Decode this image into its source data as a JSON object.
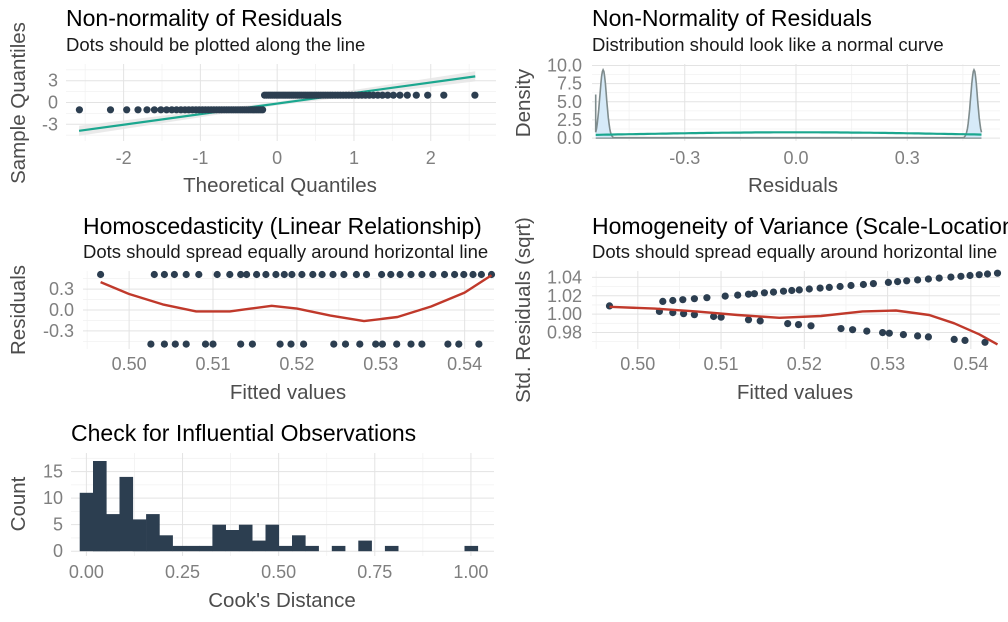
{
  "chart_data": [
    {
      "type": "scatter",
      "title": "Non-normality of Residuals",
      "subtitle": "Dots should be plotted along the line",
      "xlabel": "Theoretical Quantiles",
      "ylabel": "Sample Quantiles",
      "xlim": [
        -2.75,
        2.85
      ],
      "ylim": [
        -5.3,
        5.3
      ],
      "xticks": [
        -2,
        -1,
        0,
        1,
        2
      ],
      "xtick_labels": [
        "-2",
        "-1",
        "0",
        "1",
        "2"
      ],
      "yticks": [
        -3,
        0,
        3
      ],
      "ytick_labels": [
        "-3",
        "0",
        "3"
      ],
      "colors": {
        "points": "#2c3e50",
        "line": "#1ba78f",
        "band": "#e6e6e6"
      },
      "qq_points": {
        "n": 100,
        "neg_count": 43,
        "low_value": -1.0,
        "high_value": 1.0,
        "pos_points_x_min": 0.0
      },
      "reference_line": {
        "x": [
          -2.58,
          2.58
        ],
        "y": [
          -3.9,
          3.6
        ]
      },
      "band_halfwidth": [
        0.7,
        0.25,
        0.7
      ]
    },
    {
      "type": "area",
      "title": "Non-Normality of Residuals",
      "subtitle": "Distribution should look like a normal curve",
      "xlabel": "Residuals",
      "ylabel": "Density",
      "xlim": [
        -0.55,
        0.55
      ],
      "ylim": [
        -0.4,
        10.2
      ],
      "xticks": [
        -0.3,
        0.0,
        0.3
      ],
      "xtick_labels": [
        "-0.3",
        "0.0",
        "0.3"
      ],
      "yticks": [
        0,
        2.5,
        5,
        7.5,
        10
      ],
      "ytick_labels": [
        "0.0",
        "2.5",
        "5.0",
        "7.5",
        "10.0"
      ],
      "colors": {
        "density_fill": "#d6eaf8",
        "density_line": "#7f8c8d",
        "normal_curve": "#1ba78f"
      },
      "density_peaks": [
        {
          "x": -0.52,
          "height": 9.4,
          "sd": 0.009
        },
        {
          "x": 0.48,
          "height": 9.4,
          "sd": 0.009
        }
      ],
      "density_floor": 0.35,
      "normal_curve": {
        "mean": 0.0,
        "sd": 0.5
      }
    },
    {
      "type": "scatter",
      "title": "Homoscedasticity (Linear Relationship)",
      "subtitle": "Dots should spread equally around horizontal line",
      "xlabel": "Fitted values",
      "ylabel": "Residuals",
      "xlim": [
        0.4945,
        0.5435
      ],
      "ylim": [
        -0.56,
        0.56
      ],
      "xticks": [
        0.5,
        0.51,
        0.52,
        0.53,
        0.54
      ],
      "xtick_labels": [
        "0.50",
        "0.51",
        "0.52",
        "0.53",
        "0.54"
      ],
      "yticks": [
        -0.3,
        0.0,
        0.3
      ],
      "ytick_labels": [
        "-0.3",
        "0.0",
        "0.3"
      ],
      "colors": {
        "points": "#2c3e50",
        "smooth": "#c0392b"
      },
      "points_upper_y": 0.51,
      "points_upper_x": [
        0.4966,
        0.503,
        0.5042,
        0.5054,
        0.5068,
        0.5083,
        0.5105,
        0.512,
        0.5133,
        0.514,
        0.5152,
        0.5163,
        0.5175,
        0.5185,
        0.5194,
        0.5206,
        0.5219,
        0.523,
        0.5243,
        0.5256,
        0.5271,
        0.5283,
        0.5301,
        0.5312,
        0.5323,
        0.5336,
        0.5349,
        0.5362,
        0.5376,
        0.5388,
        0.5399,
        0.541,
        0.542,
        0.5432
      ],
      "points_lower_y": -0.49,
      "points_lower_x": [
        0.5026,
        0.5042,
        0.5055,
        0.5068,
        0.5091,
        0.51,
        0.5133,
        0.5147,
        0.518,
        0.5193,
        0.5208,
        0.5244,
        0.5258,
        0.5275,
        0.5294,
        0.5302,
        0.5319,
        0.5336,
        0.5349,
        0.538,
        0.5393,
        0.5417
      ],
      "smooth": {
        "x": [
          0.4966,
          0.5,
          0.504,
          0.508,
          0.512,
          0.5145,
          0.517,
          0.52,
          0.524,
          0.528,
          0.532,
          0.536,
          0.54,
          0.5432
        ],
        "y": [
          0.4,
          0.23,
          0.08,
          -0.02,
          -0.02,
          0.02,
          0.06,
          0.02,
          -0.08,
          -0.16,
          -0.1,
          0.05,
          0.25,
          0.5
        ]
      }
    },
    {
      "type": "scatter",
      "title": "Homogeneity of Variance (Scale-Location)",
      "subtitle": "Dots should spread equally around horizontal line",
      "xlabel": "Fitted values",
      "ylabel": "Std. Residuals (sqrt)",
      "xlim": [
        0.4945,
        0.5435
      ],
      "ylim": [
        0.962,
        1.047
      ],
      "xticks": [
        0.5,
        0.51,
        0.52,
        0.53,
        0.54
      ],
      "xtick_labels": [
        "0.50",
        "0.51",
        "0.52",
        "0.53",
        "0.54"
      ],
      "yticks": [
        0.98,
        1.0,
        1.02,
        1.04
      ],
      "ytick_labels": [
        "0.98",
        "1.00",
        "1.02",
        "1.04"
      ],
      "colors": {
        "points": "#2c3e50",
        "smooth": "#c0392b"
      },
      "upper_cluster": {
        "x_start": 0.4966,
        "x_end": 0.5398,
        "y_start": 1.009,
        "y_end": 1.042
      },
      "lower_cluster": {
        "x_start": 0.5026,
        "x_end": 0.5432,
        "y_start": 1.003,
        "y_end": 0.968
      },
      "smooth": {
        "x": [
          0.4966,
          0.502,
          0.507,
          0.512,
          0.517,
          0.522,
          0.527,
          0.531,
          0.535,
          0.538,
          0.541,
          0.5432
        ],
        "y": [
          1.008,
          1.006,
          1.003,
          0.999,
          0.996,
          0.998,
          1.003,
          1.004,
          0.999,
          0.99,
          0.978,
          0.967
        ]
      }
    },
    {
      "type": "bar",
      "title": "Check for Influential Observations",
      "subtitle": "",
      "xlabel": "Cook's Distance",
      "ylabel": "Count",
      "xlim": [
        -0.04,
        1.06
      ],
      "ylim": [
        -0.9,
        18.5
      ],
      "xticks": [
        0,
        0.25,
        0.5,
        0.75,
        1.0
      ],
      "xtick_labels": [
        "0.00",
        "0.25",
        "0.50",
        "0.75",
        "1.00"
      ],
      "yticks": [
        0,
        5,
        10,
        15
      ],
      "ytick_labels": [
        "0",
        "5",
        "10",
        "15"
      ],
      "colors": {
        "bars": "#2c3e50"
      },
      "bin_width": 0.0345,
      "bin_start": -0.0173,
      "counts": [
        11,
        17,
        7,
        14,
        6,
        7,
        3,
        1,
        1,
        1,
        5,
        4,
        5,
        2,
        5,
        1,
        3,
        1,
        0,
        1,
        0,
        2,
        0,
        1,
        0,
        0,
        0,
        0,
        0,
        1
      ]
    }
  ]
}
